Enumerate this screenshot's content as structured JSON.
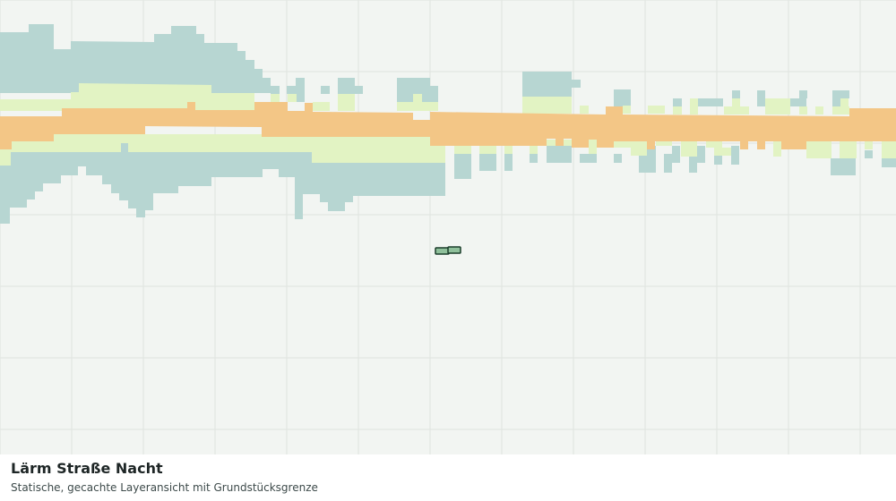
{
  "map": {
    "title": "Lärm Straße Nacht",
    "subtitle": "Statische, gecachte Layeransicht mit Grundstücksgrenze",
    "layer_colors": {
      "background": "#f2f5f2",
      "grid": "#dfe4df",
      "band_outer": "#b7d6d2",
      "band_middle": "#e2f3c3",
      "band_core": "#f3c686",
      "parcel_fill": "#8fc09b",
      "parcel_stroke": "#1a3d2a"
    }
  }
}
